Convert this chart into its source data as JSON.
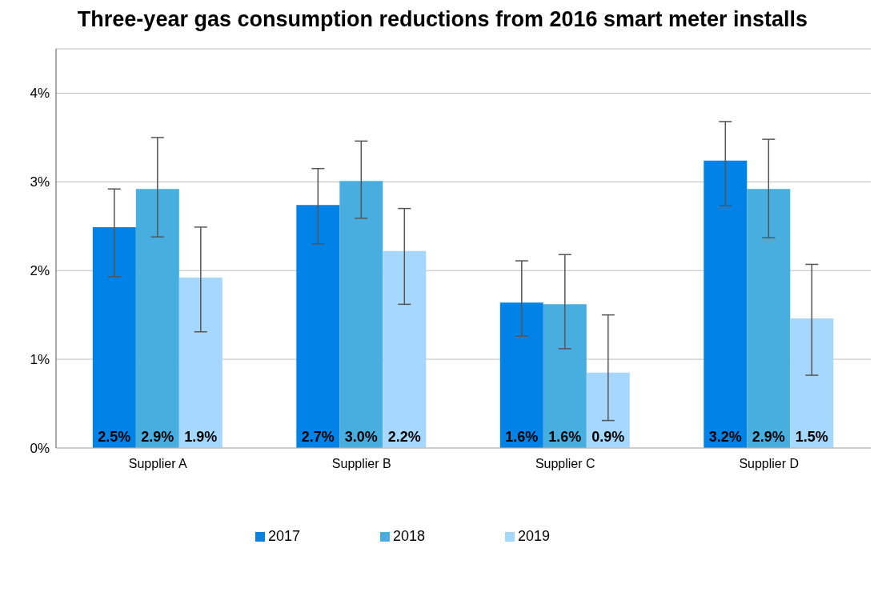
{
  "chart_data": {
    "type": "bar",
    "title": "Three-year gas consumption reductions from 2016 smart meter installs",
    "categories": [
      "Supplier A",
      "Supplier B",
      "Supplier C",
      "Supplier D"
    ],
    "series": [
      {
        "name": "2017",
        "color": "#0082e6",
        "values": [
          2.49,
          2.74,
          1.64,
          3.24
        ],
        "value_labels": [
          "2.5%",
          "2.7%",
          "1.6%",
          "3.2%"
        ],
        "errors": [
          [
            1.93,
            2.92
          ],
          [
            2.3,
            3.15
          ],
          [
            1.26,
            2.11
          ],
          [
            2.73,
            3.68
          ]
        ]
      },
      {
        "name": "2018",
        "color": "#47aedf",
        "values": [
          2.92,
          3.01,
          1.62,
          2.92
        ],
        "value_labels": [
          "2.9%",
          "3.0%",
          "1.6%",
          "2.9%"
        ],
        "errors": [
          [
            2.38,
            3.5
          ],
          [
            2.59,
            3.46
          ],
          [
            1.12,
            2.18
          ],
          [
            2.37,
            3.48
          ]
        ]
      },
      {
        "name": "2019",
        "color": "#a6d8fd",
        "values": [
          1.92,
          2.22,
          0.85,
          1.46
        ],
        "value_labels": [
          "1.9%",
          "2.2%",
          "0.9%",
          "1.5%"
        ],
        "errors": [
          [
            1.31,
            2.49
          ],
          [
            1.62,
            2.7
          ],
          [
            0.31,
            1.5
          ],
          [
            0.82,
            2.07
          ]
        ]
      }
    ],
    "ylim": [
      0,
      4.5
    ],
    "yticks": [
      {
        "value": 0,
        "label": "0%"
      },
      {
        "value": 1,
        "label": "1%"
      },
      {
        "value": 2,
        "label": "2%"
      },
      {
        "value": 3,
        "label": "3%"
      },
      {
        "value": 4,
        "label": "4%"
      }
    ],
    "grid": "y",
    "legend": "bottom"
  }
}
